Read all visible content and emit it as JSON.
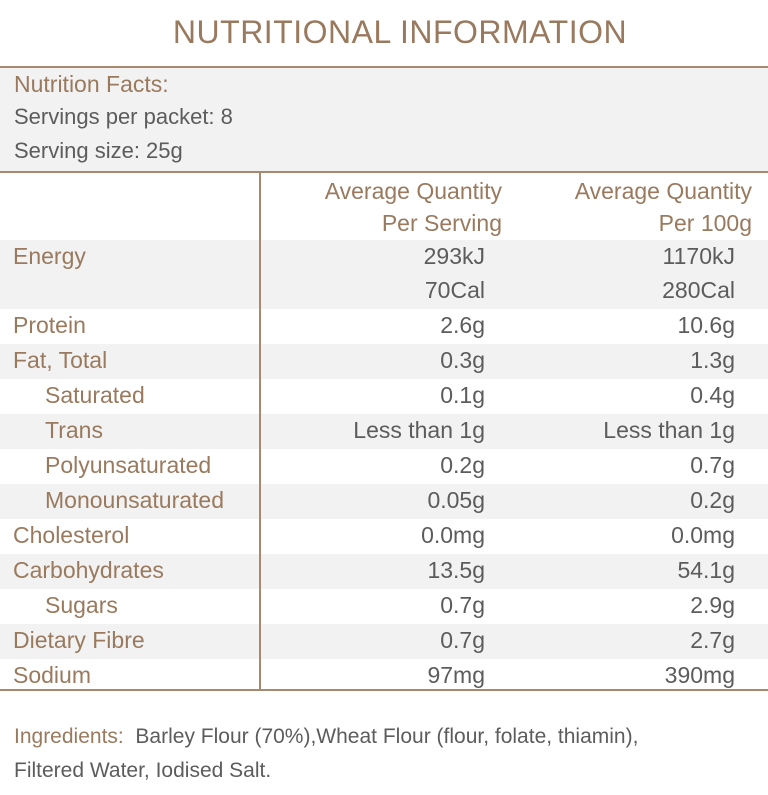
{
  "title": "NUTRITIONAL INFORMATION",
  "facts": {
    "heading": "Nutrition Facts:",
    "servings": "Servings per packet: 8",
    "serving_size": "Serving size: 25g"
  },
  "columns": {
    "per_serving": [
      "Average Quantity",
      "Per Serving"
    ],
    "per_100g": [
      "Average Quantity",
      "Per 100g"
    ]
  },
  "rows": [
    {
      "label": "Energy",
      "indent": false,
      "serving": [
        "293kJ",
        "70Cal"
      ],
      "per100": [
        "1170kJ",
        "280Cal"
      ]
    },
    {
      "label": "Protein",
      "indent": false,
      "serving": [
        "2.6g"
      ],
      "per100": [
        "10.6g"
      ]
    },
    {
      "label": "Fat, Total",
      "indent": false,
      "serving": [
        "0.3g"
      ],
      "per100": [
        "1.3g"
      ]
    },
    {
      "label": "Saturated",
      "indent": true,
      "serving": [
        "0.1g"
      ],
      "per100": [
        "0.4g"
      ]
    },
    {
      "label": "Trans",
      "indent": true,
      "serving": [
        "Less than 1g"
      ],
      "per100": [
        "Less than 1g"
      ]
    },
    {
      "label": "Polyunsaturated",
      "indent": true,
      "serving": [
        "0.2g"
      ],
      "per100": [
        "0.7g"
      ]
    },
    {
      "label": "Monounsaturated",
      "indent": true,
      "serving": [
        "0.05g"
      ],
      "per100": [
        "0.2g"
      ]
    },
    {
      "label": "Cholesterol",
      "indent": false,
      "serving": [
        "0.0mg"
      ],
      "per100": [
        "0.0mg"
      ]
    },
    {
      "label": "Carbohydrates",
      "indent": false,
      "serving": [
        "13.5g"
      ],
      "per100": [
        "54.1g"
      ]
    },
    {
      "label": "Sugars",
      "indent": true,
      "serving": [
        "0.7g"
      ],
      "per100": [
        "2.9g"
      ]
    },
    {
      "label": "Dietary Fibre",
      "indent": false,
      "serving": [
        "0.7g"
      ],
      "per100": [
        "2.7g"
      ]
    },
    {
      "label": "Sodium",
      "indent": false,
      "serving": [
        "97mg"
      ],
      "per100": [
        "390mg"
      ]
    }
  ],
  "ingredients": {
    "label": "Ingredients:",
    "text_line1": "Barley Flour (70%),Wheat Flour (flour, folate, thiamin),",
    "text_line2": "Filtered Water, Iodised Salt."
  }
}
